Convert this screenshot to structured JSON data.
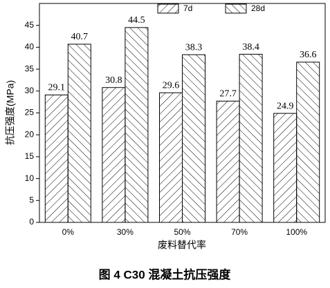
{
  "chart_data": {
    "type": "bar",
    "title": "图 4  C30 混凝土抗压强度",
    "x_label": "废料替代率",
    "y_label": "抗压强度(MPa)",
    "categories": [
      "0%",
      "30%",
      "50%",
      "70%",
      "100%"
    ],
    "series": [
      {
        "name": "7d",
        "color": "#000000",
        "values": [
          29.1,
          30.8,
          29.6,
          27.7,
          24.9
        ]
      },
      {
        "name": "28d",
        "color": "#000000",
        "values": [
          40.7,
          44.5,
          38.3,
          38.4,
          36.6
        ]
      }
    ],
    "ylim": [
      0,
      50
    ],
    "yticks": [
      0,
      5,
      10,
      15,
      20,
      25,
      30,
      35,
      40,
      45
    ],
    "grid": false,
    "legend": "top"
  }
}
